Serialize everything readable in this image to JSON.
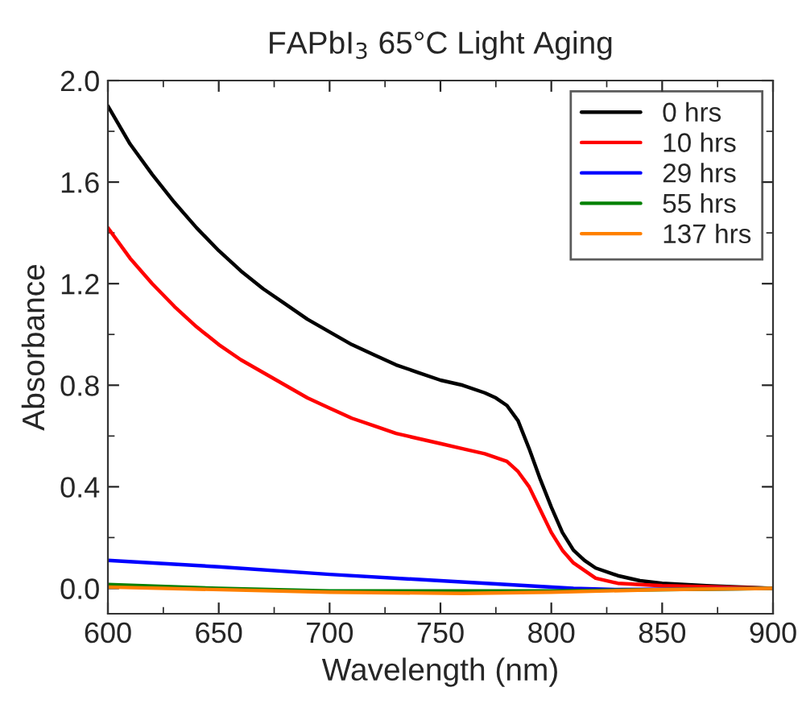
{
  "chart_data": {
    "type": "line",
    "title": "FAPbI$_{3}$ 65°C Light Aging",
    "xlabel": "Wavelength (nm)",
    "ylabel": "Absorbance",
    "xlim": [
      600,
      900
    ],
    "xticks": [
      600,
      650,
      700,
      750,
      800,
      850,
      900
    ],
    "ylim": [
      -0.1,
      2.0
    ],
    "yticks": [
      {
        "value": 0,
        "label": "0.0"
      },
      0.4,
      0.8,
      1.2,
      1.6,
      {
        "value": 2,
        "label": "2.0"
      }
    ],
    "legend": "top right",
    "grid": false,
    "marker": "none",
    "line_style": "solid",
    "series": [
      {
        "name": "0 hrs",
        "color": "#000000",
        "x": [
          600,
          610,
          620,
          630,
          640,
          650,
          660,
          670,
          680,
          690,
          700,
          710,
          720,
          730,
          740,
          750,
          760,
          770,
          775,
          780,
          785,
          790,
          795,
          800,
          805,
          810,
          815,
          820,
          830,
          840,
          850,
          870,
          900
        ],
        "values": [
          1.9,
          1.75,
          1.63,
          1.52,
          1.42,
          1.33,
          1.25,
          1.18,
          1.12,
          1.06,
          1.01,
          0.96,
          0.92,
          0.88,
          0.85,
          0.82,
          0.8,
          0.77,
          0.75,
          0.72,
          0.66,
          0.55,
          0.43,
          0.32,
          0.22,
          0.15,
          0.11,
          0.08,
          0.05,
          0.03,
          0.02,
          0.01,
          0.0
        ]
      },
      {
        "name": "10 hrs",
        "color": "#ff0000",
        "x": [
          600,
          610,
          620,
          630,
          640,
          650,
          660,
          670,
          680,
          690,
          700,
          710,
          720,
          730,
          740,
          750,
          760,
          770,
          780,
          785,
          790,
          795,
          800,
          805,
          810,
          815,
          820,
          830,
          850,
          900
        ],
        "values": [
          1.42,
          1.3,
          1.2,
          1.11,
          1.03,
          0.96,
          0.9,
          0.85,
          0.8,
          0.75,
          0.71,
          0.67,
          0.64,
          0.61,
          0.59,
          0.57,
          0.55,
          0.53,
          0.5,
          0.46,
          0.4,
          0.31,
          0.22,
          0.15,
          0.1,
          0.07,
          0.04,
          0.02,
          0.01,
          0.0
        ]
      },
      {
        "name": "29 hrs",
        "color": "#0000ff",
        "x": [
          600,
          650,
          700,
          750,
          810,
          830,
          900
        ],
        "values": [
          0.11,
          0.085,
          0.055,
          0.03,
          0.0,
          -0.005,
          0.0
        ]
      },
      {
        "name": "55 hrs",
        "color": "#008000",
        "x": [
          600,
          650,
          700,
          800,
          900
        ],
        "values": [
          0.015,
          0.0,
          -0.01,
          -0.01,
          0.0
        ]
      },
      {
        "name": "137 hrs",
        "color": "#ff8000",
        "x": [
          600,
          700,
          760,
          800,
          850,
          900
        ],
        "values": [
          0.005,
          -0.015,
          -0.02,
          -0.015,
          -0.005,
          0.0
        ]
      }
    ]
  }
}
